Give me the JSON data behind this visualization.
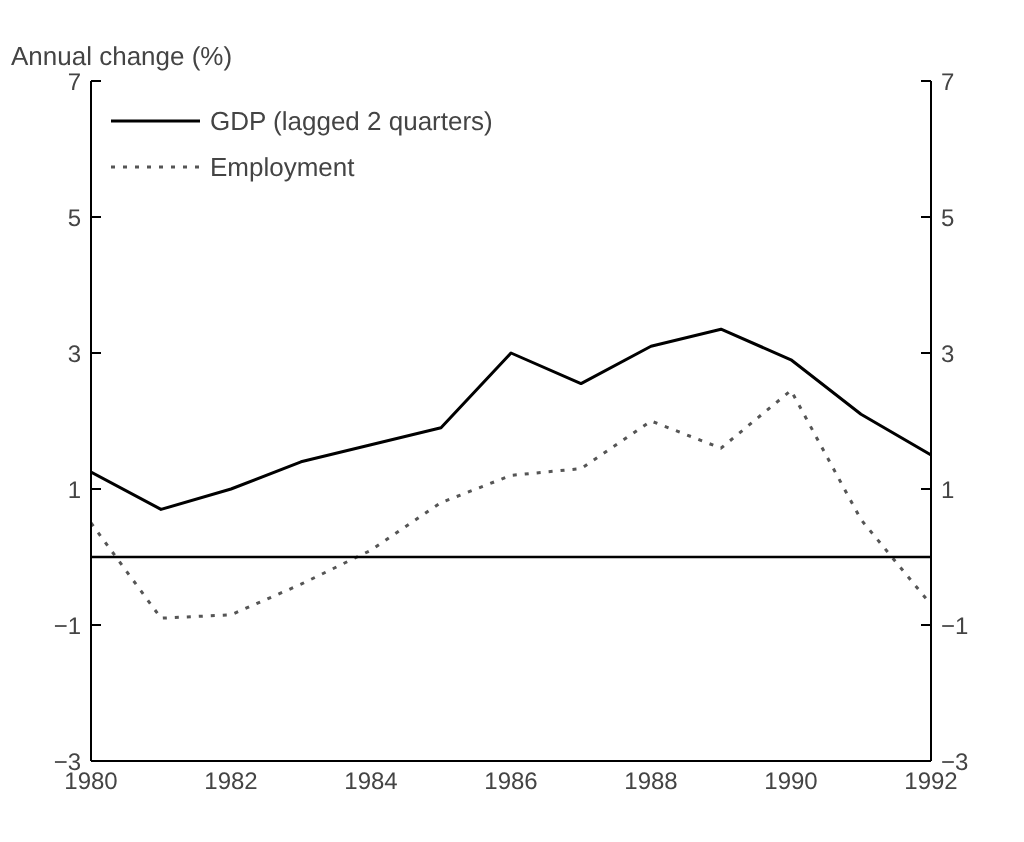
{
  "chart_data": {
    "type": "line",
    "ylabel": "Annual change (%)",
    "x": [
      1980,
      1981,
      1982,
      1983,
      1984,
      1985,
      1986,
      1987,
      1988,
      1989,
      1990,
      1991,
      1992
    ],
    "series": [
      {
        "name": "GDP (lagged 2 quarters)",
        "color": "#000000",
        "line_style": "solid",
        "values": [
          1.25,
          0.7,
          1.0,
          1.4,
          1.65,
          1.9,
          3.0,
          2.55,
          3.1,
          3.35,
          2.9,
          2.1,
          1.5
        ]
      },
      {
        "name": "Employment",
        "color": "#555555",
        "line_style": "dotted",
        "values": [
          0.5,
          -0.9,
          -0.85,
          -0.4,
          0.1,
          0.8,
          1.2,
          1.3,
          2.0,
          1.6,
          2.45,
          0.55,
          -0.7
        ]
      }
    ],
    "xlim": [
      1980,
      1992
    ],
    "xticks": [
      1980,
      1982,
      1984,
      1986,
      1988,
      1990,
      1992
    ],
    "ylim": [
      -3,
      7
    ],
    "yticks": [
      -3,
      -1,
      1,
      3,
      5,
      7
    ],
    "y2lim": [
      -3,
      7
    ],
    "y2ticks": [
      -3,
      -1,
      1,
      3,
      5,
      7
    ],
    "ref_lines": [
      {
        "axis": "y",
        "value": 0,
        "label": null,
        "color": "#000000"
      }
    ],
    "grid": false,
    "legend": "top left"
  }
}
